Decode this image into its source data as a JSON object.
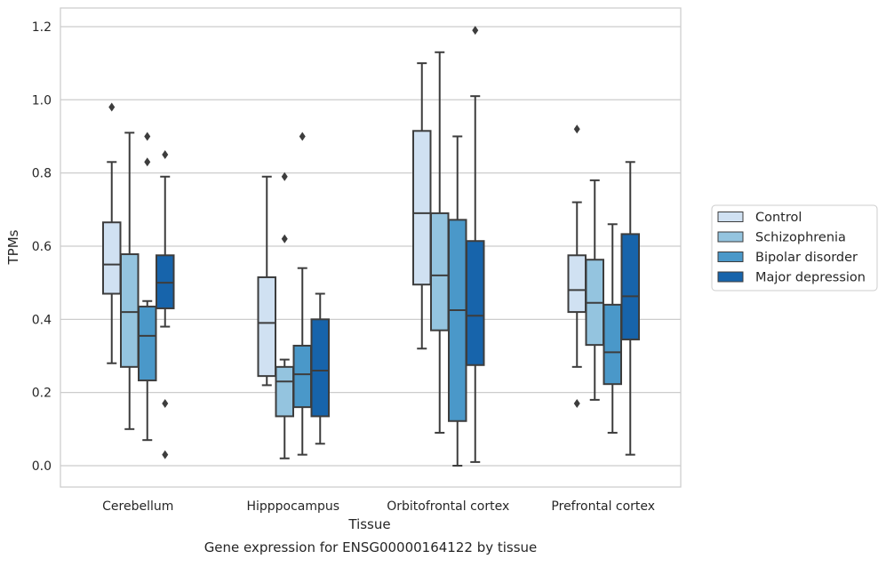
{
  "caption": "Gene expression for ENSG00000164122 by tissue",
  "chart_data": {
    "type": "boxplot",
    "xlabel": "Tissue",
    "ylabel": "TPMs",
    "ylim": [
      -0.06,
      1.25
    ],
    "yticks": [
      0.0,
      0.2,
      0.4,
      0.6,
      0.8,
      1.0,
      1.2
    ],
    "ytick_labels": [
      "0.0",
      "0.2",
      "0.4",
      "0.6",
      "0.8",
      "1.0",
      "1.2"
    ],
    "grid": "horizontal",
    "legend_position": "right",
    "categories": [
      "Cerebellum",
      "Hipppocampus",
      "Orbitofrontal cortex",
      "Prefrontal cortex"
    ],
    "series": [
      {
        "name": "Control",
        "color": "#d0e1f2",
        "boxes": [
          {
            "whislo": 0.28,
            "q1": 0.47,
            "med": 0.55,
            "q3": 0.665,
            "whishi": 0.83,
            "fliers": [
              0.98
            ]
          },
          {
            "whislo": 0.22,
            "q1": 0.245,
            "med": 0.39,
            "q3": 0.515,
            "whishi": 0.79,
            "fliers": []
          },
          {
            "whislo": 0.32,
            "q1": 0.495,
            "med": 0.69,
            "q3": 0.915,
            "whishi": 1.1,
            "fliers": []
          },
          {
            "whislo": 0.27,
            "q1": 0.42,
            "med": 0.48,
            "q3": 0.575,
            "whishi": 0.72,
            "fliers": [
              0.92,
              0.17
            ]
          }
        ]
      },
      {
        "name": "Schizophrenia",
        "color": "#94c4df",
        "boxes": [
          {
            "whislo": 0.1,
            "q1": 0.27,
            "med": 0.42,
            "q3": 0.578,
            "whishi": 0.91,
            "fliers": []
          },
          {
            "whislo": 0.02,
            "q1": 0.135,
            "med": 0.23,
            "q3": 0.27,
            "whishi": 0.29,
            "fliers": [
              0.79,
              0.62
            ]
          },
          {
            "whislo": 0.09,
            "q1": 0.37,
            "med": 0.52,
            "q3": 0.69,
            "whishi": 1.13,
            "fliers": []
          },
          {
            "whislo": 0.18,
            "q1": 0.33,
            "med": 0.445,
            "q3": 0.563,
            "whishi": 0.78,
            "fliers": []
          }
        ]
      },
      {
        "name": "Bipolar disorder",
        "color": "#4a98c9",
        "boxes": [
          {
            "whislo": 0.07,
            "q1": 0.233,
            "med": 0.355,
            "q3": 0.435,
            "whishi": 0.45,
            "fliers": [
              0.9,
              0.83
            ]
          },
          {
            "whislo": 0.03,
            "q1": 0.16,
            "med": 0.25,
            "q3": 0.328,
            "whishi": 0.54,
            "fliers": [
              0.9
            ]
          },
          {
            "whislo": 0.0,
            "q1": 0.122,
            "med": 0.425,
            "q3": 0.672,
            "whishi": 0.9,
            "fliers": []
          },
          {
            "whislo": 0.09,
            "q1": 0.223,
            "med": 0.31,
            "q3": 0.44,
            "whishi": 0.66,
            "fliers": []
          }
        ]
      },
      {
        "name": "Major depression",
        "color": "#1764ab",
        "boxes": [
          {
            "whislo": 0.38,
            "q1": 0.43,
            "med": 0.5,
            "q3": 0.575,
            "whishi": 0.79,
            "fliers": [
              0.85,
              0.17,
              0.03
            ]
          },
          {
            "whislo": 0.06,
            "q1": 0.135,
            "med": 0.26,
            "q3": 0.4,
            "whishi": 0.47,
            "fliers": []
          },
          {
            "whislo": 0.01,
            "q1": 0.275,
            "med": 0.41,
            "q3": 0.614,
            "whishi": 1.01,
            "fliers": [
              1.19
            ]
          },
          {
            "whislo": 0.03,
            "q1": 0.345,
            "med": 0.463,
            "q3": 0.633,
            "whishi": 0.83,
            "fliers": []
          }
        ]
      }
    ]
  }
}
